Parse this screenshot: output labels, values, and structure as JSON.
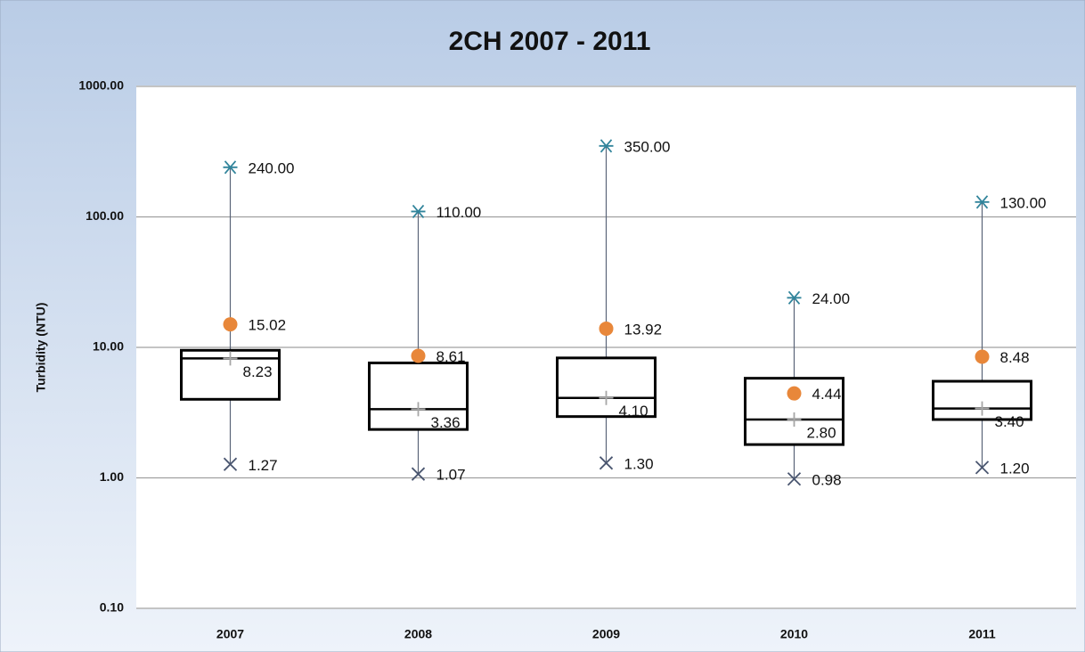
{
  "chart_data": {
    "type": "box",
    "title": "2CH 2007 - 2011",
    "ylabel": "Turbidity (NTU)",
    "categories": [
      "2007",
      "2008",
      "2009",
      "2010",
      "2011"
    ],
    "yscale": "log",
    "ylim": [
      0.1,
      1000
    ],
    "yticks": [
      {
        "value": 0.1,
        "label": "0.10"
      },
      {
        "value": 1,
        "label": "1.00"
      },
      {
        "value": 10,
        "label": "10.00"
      },
      {
        "value": 100,
        "label": "100.00"
      },
      {
        "value": 1000,
        "label": "1000.00"
      }
    ],
    "grid": true,
    "box_color": "#000000",
    "q1": [
      4.0,
      2.35,
      2.95,
      1.8,
      2.8
    ],
    "q3": [
      9.5,
      7.6,
      8.3,
      5.8,
      5.5
    ],
    "median": {
      "values": [
        8.23,
        3.36,
        4.1,
        2.8,
        3.4
      ],
      "value_labels": [
        "8.23",
        "3.36",
        "4.10",
        "2.80",
        "3.40"
      ],
      "color": "#a6a6a6",
      "marker": "plus"
    },
    "mean": {
      "values": [
        15.02,
        8.61,
        13.92,
        4.44,
        8.48
      ],
      "value_labels": [
        "15.02",
        "8.61",
        "13.92",
        "4.44",
        "8.48"
      ],
      "color": "#e8873a",
      "marker": "circle"
    },
    "max": {
      "values": [
        240,
        110,
        350,
        24,
        130
      ],
      "value_labels": [
        "240.00",
        "110.00",
        "350.00",
        "24.00",
        "130.00"
      ],
      "color": "#31849b",
      "marker": "star"
    },
    "min": {
      "values": [
        1.27,
        1.07,
        1.3,
        0.98,
        1.2
      ],
      "value_labels": [
        "1.27",
        "1.07",
        "1.30",
        "0.98",
        "1.20"
      ],
      "color": "#4a5670",
      "marker": "x"
    }
  }
}
